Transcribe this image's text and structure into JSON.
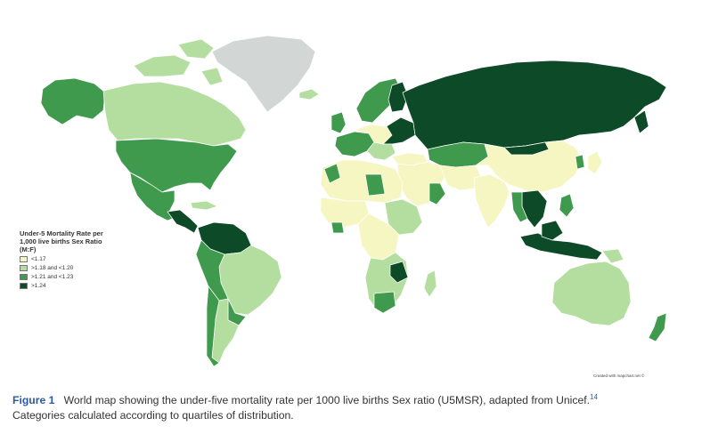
{
  "colors": {
    "cat1": "#f6f6c2",
    "cat2": "#b4dea0",
    "cat3": "#3f9a4d",
    "cat4": "#0d4a27",
    "nodata": "#d2d7d5",
    "border": "#ffffff",
    "caption_accent": "#2b5aa3"
  },
  "legend": {
    "title_line1": "Under-5 Mortality Rate per",
    "title_line2": "1,000 live births Sex Ratio",
    "title_line3": "(M:F)",
    "items": [
      {
        "label": "<1.17",
        "color": "#f6f6c2"
      },
      {
        "label": ">1.18 and <1.20",
        "color": "#b4dea0"
      },
      {
        "label": ">1.21 and <1.23",
        "color": "#3f9a4d"
      },
      {
        "label": ">1.24",
        "color": "#0d4a27"
      }
    ]
  },
  "credit": "Created with mapchart.net ©",
  "caption": {
    "label": "Figure 1",
    "text": "World map showing the under-five mortality rate per 1000 live births Sex ratio (U5MSR), adapted from Unicef.",
    "ref": "14",
    "line2": "Categories calculated according to quartiles of distribution."
  }
}
